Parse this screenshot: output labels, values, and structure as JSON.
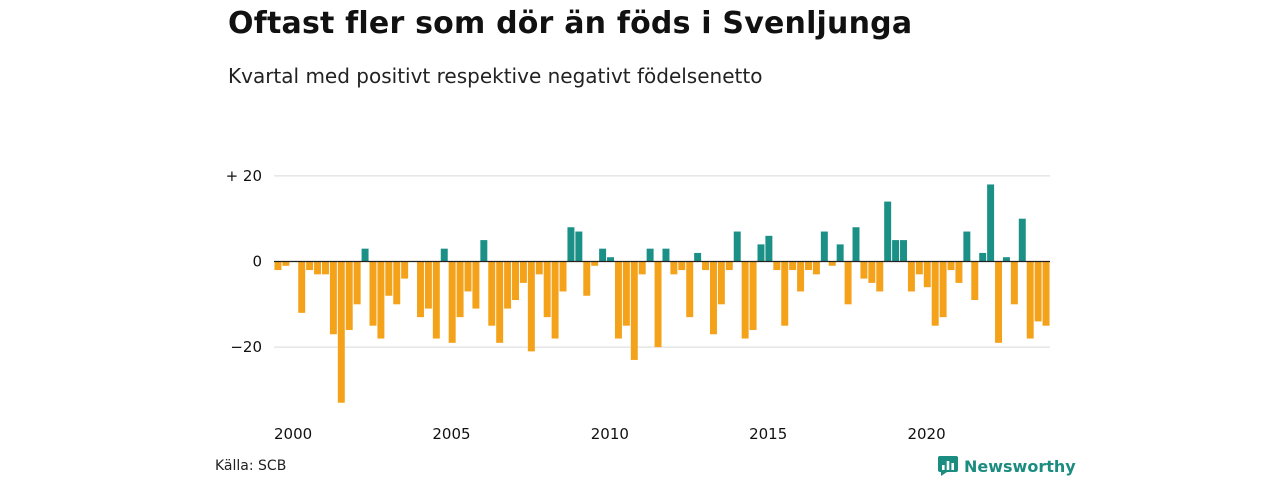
{
  "header": {
    "title": "Oftast fler som dör än föds i Svenljunga",
    "subtitle": "Kvartal med positivt respektive negativt födelsenetto"
  },
  "footer": {
    "source": "Källa: SCB",
    "brand": "Newsworthy",
    "brand_icon": "bar-chart-logo-icon"
  },
  "colors": {
    "positive": "#1b9086",
    "negative": "#f5a21b",
    "grid": "#d9d9d9",
    "zero_line": "#222222"
  },
  "chart_data": {
    "type": "bar",
    "title": "Oftast fler som dör än föds i Svenljunga",
    "subtitle": "Kvartal med positivt respektive negativt födelsenetto",
    "xlabel": "",
    "ylabel": "",
    "ylim": [
      -35,
      20
    ],
    "xlim": [
      2000,
      2024.75
    ],
    "yticks": [
      20,
      0,
      -20
    ],
    "ytick_labels": [
      "+ 20",
      "0",
      "−20"
    ],
    "xticks": [
      2000,
      2005,
      2010,
      2015,
      2020
    ],
    "xtick_labels": [
      "2000",
      "2005",
      "2010",
      "2015",
      "2020"
    ],
    "grid": true,
    "legend": "none",
    "x_start": "2000 Q1",
    "frequency": "quarterly",
    "values": [
      -2,
      -1,
      0,
      -12,
      -2,
      -3,
      -3,
      -17,
      -33,
      -16,
      -10,
      3,
      -15,
      -18,
      -8,
      -10,
      -4,
      0,
      -13,
      -11,
      -18,
      3,
      -19,
      -13,
      -7,
      -11,
      5,
      -15,
      -19,
      -11,
      -9,
      -5,
      -21,
      -3,
      -13,
      -18,
      -7,
      8,
      7,
      -8,
      -1,
      3,
      1,
      -18,
      -15,
      -23,
      -3,
      3,
      -20,
      3,
      -3,
      -2,
      -13,
      2,
      -2,
      -17,
      -10,
      -2,
      7,
      -18,
      -16,
      4,
      6,
      -2,
      -15,
      -2,
      -7,
      -2,
      -3,
      7,
      -1,
      4,
      -10,
      8,
      -4,
      -5,
      -7,
      14,
      5,
      5,
      -7,
      -3,
      -6,
      -15,
      -13,
      -2,
      -5,
      7,
      -9,
      2,
      18,
      -19,
      1,
      -10,
      10,
      -18,
      -14,
      -15
    ]
  }
}
